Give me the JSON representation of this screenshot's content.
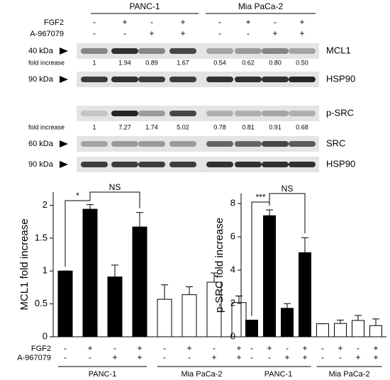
{
  "blot": {
    "groups": [
      "PANC-1",
      "Mia PaCa-2"
    ],
    "treatments": [
      {
        "label": "FGF2",
        "signs": [
          "-",
          "+",
          "-",
          "+",
          "-",
          "+",
          "-",
          "+"
        ]
      },
      {
        "label": "A-967079",
        "signs": [
          "-",
          "-",
          "+",
          "+",
          "-",
          "-",
          "+",
          "+"
        ]
      }
    ],
    "rows": [
      {
        "marker": "40 kDa",
        "name": "MCL1"
      },
      {
        "marker": "fold increase",
        "values": [
          "1",
          "1.94",
          "0.89",
          "1.67",
          "0.54",
          "0.62",
          "0.80",
          "0.50"
        ]
      },
      {
        "marker": "90 kDa",
        "name": "HSP90"
      },
      {
        "name": "p-SRC"
      },
      {
        "marker": "fold increase",
        "values": [
          "1",
          "7.27",
          "1.74",
          "5.02",
          "0.78",
          "0.81",
          "0.91",
          "0.68"
        ]
      },
      {
        "marker": "60 kDa",
        "name": "SRC"
      },
      {
        "marker": "90 kDa",
        "name": "HSP90"
      }
    ]
  },
  "chart_data": [
    {
      "type": "bar",
      "ylabel": "MCL1 fold increase",
      "categories": [
        null,
        null,
        null,
        null,
        null,
        null,
        null,
        null
      ],
      "values": [
        1,
        1.94,
        0.91,
        1.67,
        0.57,
        0.64,
        0.83,
        0.52
      ],
      "errors": [
        0,
        0.07,
        0.18,
        0.22,
        0.22,
        0.12,
        0.14,
        0.1
      ],
      "colors": [
        "#000000",
        "#000000",
        "#000000",
        "#000000",
        "#ffffff",
        "#ffffff",
        "#ffffff",
        "#ffffff"
      ],
      "ylim": [
        0,
        2.2
      ],
      "yticks": [
        0,
        0.5,
        1,
        1.5,
        2
      ],
      "treatments": [
        {
          "label": "FGF2",
          "signs": [
            "-",
            "+",
            "-",
            "+",
            "-",
            "+",
            "-",
            "+"
          ]
        },
        {
          "label": "A-967079",
          "signs": [
            "-",
            "-",
            "+",
            "+",
            "-",
            "-",
            "+",
            "+"
          ]
        }
      ],
      "groups": [
        "PANC-1",
        "Mia PaCa-2"
      ],
      "annotations": [
        "*",
        "NS"
      ]
    },
    {
      "type": "bar",
      "ylabel": "p-SRC fold increase",
      "categories": [
        null,
        null,
        null,
        null,
        null,
        null,
        null,
        null
      ],
      "values": [
        1,
        7.27,
        1.71,
        5.05,
        0.78,
        0.8,
        0.98,
        0.67
      ],
      "errors": [
        0,
        0.35,
        0.28,
        0.9,
        0,
        0.2,
        0.3,
        0.4
      ],
      "colors": [
        "#000000",
        "#000000",
        "#000000",
        "#000000",
        "#ffffff",
        "#ffffff",
        "#ffffff",
        "#ffffff"
      ],
      "ylim": [
        0,
        8.6
      ],
      "yticks": [
        0,
        2,
        4,
        6,
        8
      ],
      "treatments": [
        {
          "signs": [
            "-",
            "+",
            "-",
            "+",
            "-",
            "+",
            "-",
            "+"
          ]
        },
        {
          "signs": [
            "-",
            "-",
            "+",
            "+",
            "-",
            "-",
            "+",
            "+"
          ]
        }
      ],
      "groups": [
        "PANC-1",
        "Mia PaCa-2"
      ],
      "annotations": [
        "***",
        "NS"
      ]
    }
  ]
}
